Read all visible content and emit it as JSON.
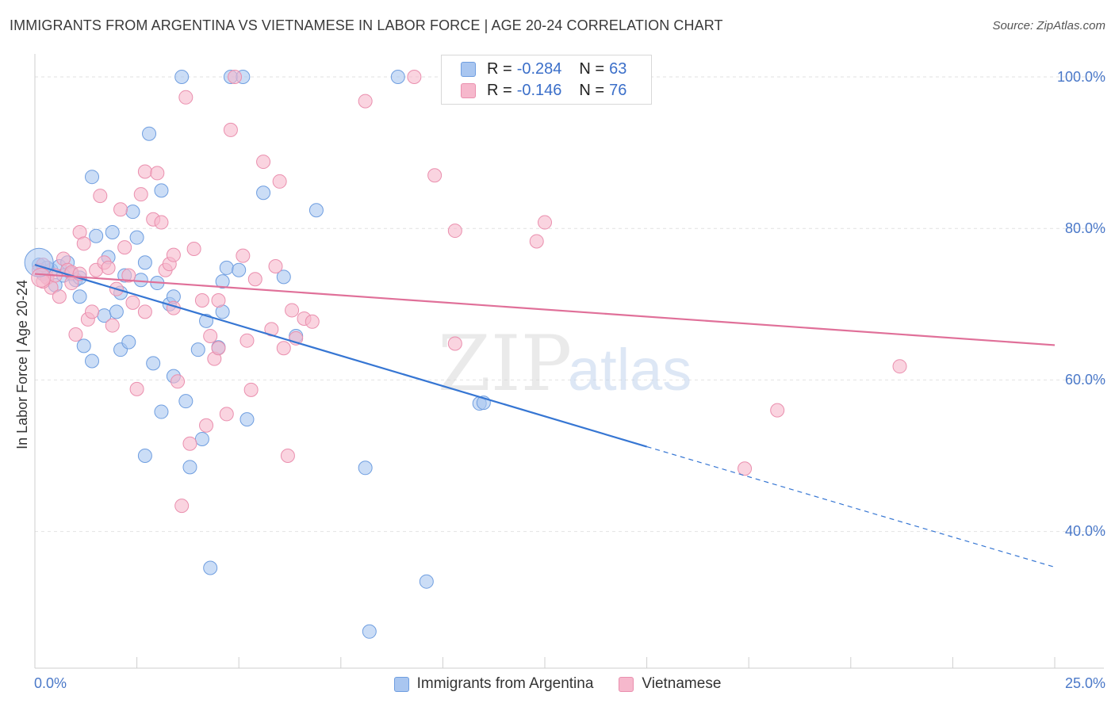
{
  "title": "IMMIGRANTS FROM ARGENTINA VS VIETNAMESE IN LABOR FORCE | AGE 20-24 CORRELATION CHART",
  "source": "Source: ZipAtlas.com",
  "watermark": {
    "zip": "ZIP",
    "atlas": "atlas"
  },
  "legend": {
    "r_label": "R =",
    "n_label": "N =",
    "rows": [
      {
        "r": "-0.284",
        "n": "63",
        "color": "#a9c6f0",
        "border": "#6f9ee0"
      },
      {
        "r": "-0.146",
        "n": "76",
        "color": "#f6b8cc",
        "border": "#ea8fae"
      }
    ]
  },
  "chart_data": {
    "type": "scatter",
    "title": "IMMIGRANTS FROM ARGENTINA VS VIETNAMESE IN LABOR FORCE | AGE 20-24 CORRELATION CHART",
    "xlabel": "",
    "ylabel": "In Labor Force | Age 20-24",
    "xlim": [
      0,
      25
    ],
    "ylim": [
      20,
      102
    ],
    "x_tick_labels": [
      "0.0%",
      "25.0%"
    ],
    "y_ticks": [
      40,
      60,
      80,
      100
    ],
    "y_tick_labels": [
      "40.0%",
      "60.0%",
      "80.0%",
      "100.0%"
    ],
    "grid": true,
    "legend_position": "top-center",
    "series": [
      {
        "name": "Immigrants from Argentina",
        "color": "#a9c6f0",
        "stroke": "#6f9ee0",
        "trend": {
          "x0": 0,
          "y0": 75.2,
          "x1": 15,
          "y1": 51.2,
          "x_dash_end": 25,
          "y_dash_end": 35.3,
          "color": "#3676d3"
        },
        "points": [
          [
            0.1,
            75.2
          ],
          [
            0.2,
            74.0
          ],
          [
            0.3,
            73.5
          ],
          [
            0.4,
            74.5
          ],
          [
            0.5,
            72.5
          ],
          [
            0.6,
            75.0
          ],
          [
            0.8,
            75.5
          ],
          [
            0.9,
            74.0
          ],
          [
            1.0,
            73.2
          ],
          [
            1.1,
            73.5
          ],
          [
            1.1,
            71.0
          ],
          [
            1.2,
            64.5
          ],
          [
            1.4,
            62.5
          ],
          [
            1.4,
            86.8
          ],
          [
            1.5,
            79.0
          ],
          [
            1.7,
            68.5
          ],
          [
            1.8,
            76.2
          ],
          [
            1.9,
            79.5
          ],
          [
            2.0,
            69.0
          ],
          [
            2.1,
            71.5
          ],
          [
            2.1,
            64.0
          ],
          [
            2.2,
            73.8
          ],
          [
            2.3,
            65.0
          ],
          [
            2.4,
            82.2
          ],
          [
            2.5,
            78.8
          ],
          [
            2.6,
            73.2
          ],
          [
            2.7,
            50.0
          ],
          [
            2.7,
            75.5
          ],
          [
            2.8,
            92.5
          ],
          [
            2.9,
            62.2
          ],
          [
            3.0,
            72.8
          ],
          [
            3.1,
            55.8
          ],
          [
            3.1,
            85.0
          ],
          [
            3.3,
            70.0
          ],
          [
            3.4,
            71.0
          ],
          [
            3.4,
            60.5
          ],
          [
            3.6,
            100.0
          ],
          [
            3.7,
            57.2
          ],
          [
            3.8,
            48.5
          ],
          [
            4.0,
            64.0
          ],
          [
            4.1,
            52.2
          ],
          [
            4.2,
            67.8
          ],
          [
            4.3,
            35.2
          ],
          [
            4.5,
            64.3
          ],
          [
            4.6,
            73.0
          ],
          [
            4.6,
            69.0
          ],
          [
            4.7,
            74.8
          ],
          [
            4.8,
            100.0
          ],
          [
            5.0,
            74.5
          ],
          [
            5.1,
            100.0
          ],
          [
            5.2,
            54.8
          ],
          [
            5.6,
            84.7
          ],
          [
            6.1,
            73.6
          ],
          [
            6.4,
            65.8
          ],
          [
            6.9,
            82.4
          ],
          [
            8.1,
            48.4
          ],
          [
            8.2,
            26.8
          ],
          [
            8.9,
            100.0
          ],
          [
            9.6,
            33.4
          ],
          [
            10.9,
            56.9
          ],
          [
            11.0,
            57.0
          ],
          [
            0.3,
            74.8
          ],
          [
            0.7,
            73.8
          ]
        ]
      },
      {
        "name": "Vietnamese",
        "color": "#f6b8cc",
        "stroke": "#ea8fae",
        "trend": {
          "x0": 0,
          "y0": 74.0,
          "x1": 25,
          "y1": 64.6,
          "color": "#e07099"
        },
        "points": [
          [
            0.1,
            74.5
          ],
          [
            0.2,
            75.2
          ],
          [
            0.3,
            73.5
          ],
          [
            0.4,
            72.2
          ],
          [
            0.5,
            73.8
          ],
          [
            0.6,
            71.0
          ],
          [
            0.7,
            76.0
          ],
          [
            0.8,
            74.5
          ],
          [
            0.9,
            74.2
          ],
          [
            1.0,
            66.0
          ],
          [
            1.1,
            79.5
          ],
          [
            1.2,
            78.0
          ],
          [
            1.3,
            68.0
          ],
          [
            1.4,
            69.0
          ],
          [
            1.5,
            74.5
          ],
          [
            1.6,
            84.3
          ],
          [
            1.7,
            75.5
          ],
          [
            1.8,
            74.8
          ],
          [
            1.9,
            67.2
          ],
          [
            2.0,
            72.0
          ],
          [
            2.1,
            82.5
          ],
          [
            2.2,
            77.5
          ],
          [
            2.3,
            73.8
          ],
          [
            2.4,
            70.2
          ],
          [
            2.5,
            58.8
          ],
          [
            2.6,
            84.5
          ],
          [
            2.7,
            87.5
          ],
          [
            2.7,
            69.0
          ],
          [
            2.9,
            81.2
          ],
          [
            3.0,
            87.3
          ],
          [
            3.1,
            80.8
          ],
          [
            3.2,
            74.5
          ],
          [
            3.3,
            75.3
          ],
          [
            3.4,
            69.5
          ],
          [
            3.4,
            76.5
          ],
          [
            3.5,
            59.8
          ],
          [
            3.6,
            43.4
          ],
          [
            3.7,
            97.3
          ],
          [
            3.8,
            51.6
          ],
          [
            3.9,
            77.3
          ],
          [
            4.1,
            70.5
          ],
          [
            4.2,
            54.0
          ],
          [
            4.3,
            65.8
          ],
          [
            4.4,
            62.8
          ],
          [
            4.5,
            64.2
          ],
          [
            4.5,
            70.5
          ],
          [
            4.7,
            55.5
          ],
          [
            4.8,
            93.0
          ],
          [
            4.9,
            100.0
          ],
          [
            5.1,
            76.4
          ],
          [
            5.2,
            65.2
          ],
          [
            5.3,
            58.7
          ],
          [
            5.4,
            73.3
          ],
          [
            5.6,
            88.8
          ],
          [
            5.8,
            66.7
          ],
          [
            5.9,
            75.0
          ],
          [
            6.0,
            86.2
          ],
          [
            6.1,
            64.2
          ],
          [
            6.2,
            50.0
          ],
          [
            6.3,
            69.2
          ],
          [
            6.4,
            65.5
          ],
          [
            6.6,
            68.1
          ],
          [
            6.8,
            67.7
          ],
          [
            8.1,
            96.8
          ],
          [
            9.3,
            100.0
          ],
          [
            9.8,
            87.0
          ],
          [
            10.3,
            64.8
          ],
          [
            10.3,
            79.7
          ],
          [
            12.3,
            78.3
          ],
          [
            12.5,
            80.8
          ],
          [
            17.4,
            48.3
          ],
          [
            18.2,
            56.0
          ],
          [
            21.2,
            61.8
          ],
          [
            0.2,
            73.0
          ],
          [
            0.9,
            72.8
          ],
          [
            1.1,
            74.0
          ]
        ]
      }
    ]
  }
}
